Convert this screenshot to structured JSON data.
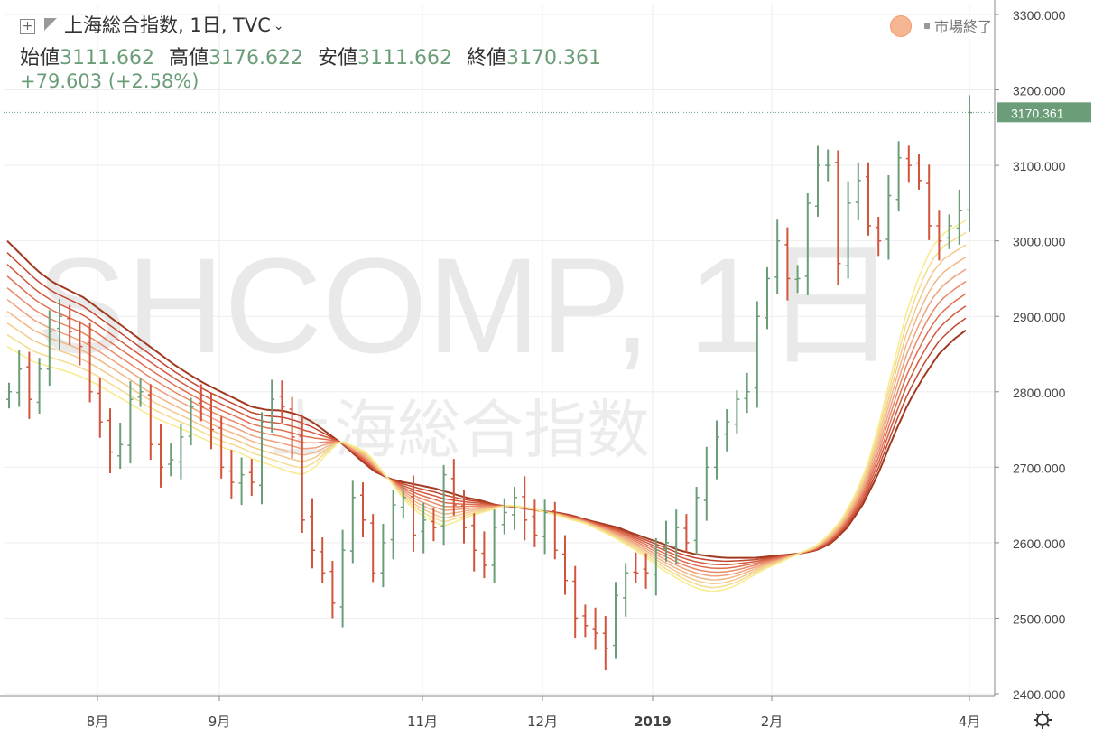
{
  "header": {
    "symbol_title": "上海総合指数, 1日, TVC",
    "ohlc": [
      {
        "label": "始値",
        "value": "3111.662"
      },
      {
        "label": "高値",
        "value": "3176.622"
      },
      {
        "label": "安値",
        "value": "3111.662"
      },
      {
        "label": "終値",
        "value": "3170.361"
      }
    ],
    "change": "+79.603 (+2.58%)",
    "market_status": "市場終了"
  },
  "watermark": {
    "line1": "SHCOMP, 1日",
    "line2": "上海総合指数"
  },
  "price_axis": {
    "ticks": [
      "3300.000",
      "3200.000",
      "3100.000",
      "3000.000",
      "2900.000",
      "2800.000",
      "2700.000",
      "2600.000",
      "2500.000",
      "2400.000"
    ],
    "last_price_label": "3170.361"
  },
  "time_axis": {
    "labels": [
      {
        "text": "8月",
        "bold": false
      },
      {
        "text": "9月",
        "bold": false
      },
      {
        "text": "11月",
        "bold": false
      },
      {
        "text": "12月",
        "bold": false
      },
      {
        "text": "2019",
        "bold": true
      },
      {
        "text": "2月",
        "bold": false
      },
      {
        "text": "4月",
        "bold": false
      }
    ]
  },
  "icons": {
    "settings": "gear-icon"
  },
  "colors": {
    "up": "#6b9e78",
    "down": "#d2543a",
    "ribbon": [
      "#a1391f",
      "#c2462f",
      "#d25a3d",
      "#e06e50",
      "#e98868",
      "#eea17c",
      "#f1b685",
      "#f3c98c",
      "#f5db8f",
      "#f7eb8a"
    ]
  },
  "chart_data": {
    "type": "ohlc",
    "title": "上海総合指数, 1日, TVC",
    "ylim": [
      2400,
      3300
    ],
    "x_labels": [
      "8月",
      "9月",
      "11月",
      "12月",
      "2019",
      "2月",
      "4月"
    ],
    "last_price": 3170.361,
    "series": [
      {
        "name": "price_closes_approx",
        "values": [
          2800,
          2830,
          2790,
          2830,
          2880,
          2900,
          2880,
          2860,
          2800,
          2760,
          2720,
          2730,
          2790,
          2800,
          2730,
          2700,
          2710,
          2740,
          2780,
          2780,
          2750,
          2700,
          2680,
          2690,
          2680,
          2760,
          2790,
          2780,
          2740,
          2630,
          2590,
          2560,
          2520,
          2590,
          2660,
          2630,
          2560,
          2600,
          2650,
          2660,
          2610,
          2630,
          2620,
          2690,
          2650,
          2620,
          2590,
          2570,
          2620,
          2640,
          2660,
          2630,
          2610,
          2640,
          2590,
          2550,
          2500,
          2490,
          2480,
          2460,
          2530,
          2560,
          2560,
          2560,
          2590,
          2600,
          2620,
          2600,
          2660,
          2700,
          2740,
          2760,
          2790,
          2800,
          2900,
          2950,
          3000,
          2950,
          2950,
          3050,
          3100,
          3100,
          2970,
          3050,
          3080,
          3020,
          3000,
          3060,
          3110,
          3100,
          3080,
          3020,
          3000,
          3020,
          3040,
          3170
        ]
      },
      {
        "name": "ribbon_fast_approx",
        "values": [
          2860,
          2850,
          2840,
          2835,
          2830,
          2825,
          2818,
          2810,
          2800,
          2790,
          2780,
          2770,
          2762,
          2755,
          2748,
          2740,
          2732,
          2725,
          2720,
          2712,
          2706,
          2700,
          2694,
          2690,
          2700,
          2720,
          2735,
          2728,
          2720,
          2700,
          2678,
          2656,
          2640,
          2630,
          2622,
          2628,
          2635,
          2640,
          2645,
          2650,
          2648,
          2645,
          2640,
          2636,
          2630,
          2626,
          2618,
          2610,
          2600,
          2590,
          2578,
          2565,
          2555,
          2545,
          2538,
          2535,
          2538,
          2545,
          2555,
          2565,
          2572,
          2580,
          2588,
          2595,
          2610,
          2630,
          2660,
          2700,
          2760,
          2830,
          2900,
          2950,
          2990,
          3010,
          3020,
          3030
        ]
      },
      {
        "name": "ribbon_slow_approx",
        "values": [
          3000,
          2980,
          2960,
          2945,
          2935,
          2925,
          2910,
          2895,
          2880,
          2865,
          2850,
          2835,
          2822,
          2810,
          2800,
          2790,
          2780,
          2776,
          2775,
          2770,
          2760,
          2745,
          2730,
          2712,
          2695,
          2685,
          2680,
          2676,
          2672,
          2666,
          2660,
          2656,
          2650,
          2648,
          2645,
          2642,
          2640,
          2636,
          2630,
          2625,
          2620,
          2612,
          2605,
          2598,
          2590,
          2585,
          2582,
          2580,
          2580,
          2580,
          2582,
          2584,
          2586,
          2590,
          2600,
          2620,
          2650,
          2690,
          2740,
          2785,
          2820,
          2850,
          2870,
          2885
        ]
      }
    ]
  }
}
